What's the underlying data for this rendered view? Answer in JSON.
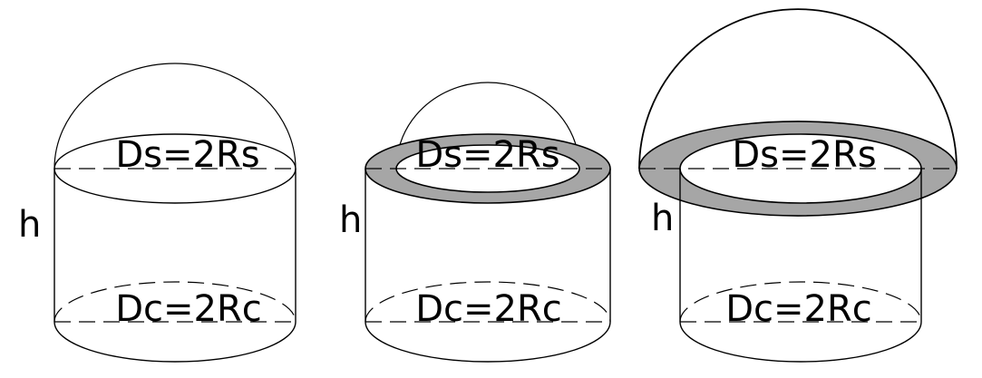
{
  "figures": [
    {
      "sphere_label": "Ds=2Rs",
      "cylinder_label": "Dc=2Rc",
      "height_label": "h"
    },
    {
      "sphere_label": "Ds=2Rs",
      "cylinder_label": "Dc=2Rc",
      "height_label": "h"
    },
    {
      "sphere_label": "Ds=2Rs",
      "cylinder_label": "Dc=2Rc",
      "height_label": "h"
    }
  ],
  "colors": {
    "ring_fill": "#a6a6a6",
    "stroke": "#000000"
  }
}
